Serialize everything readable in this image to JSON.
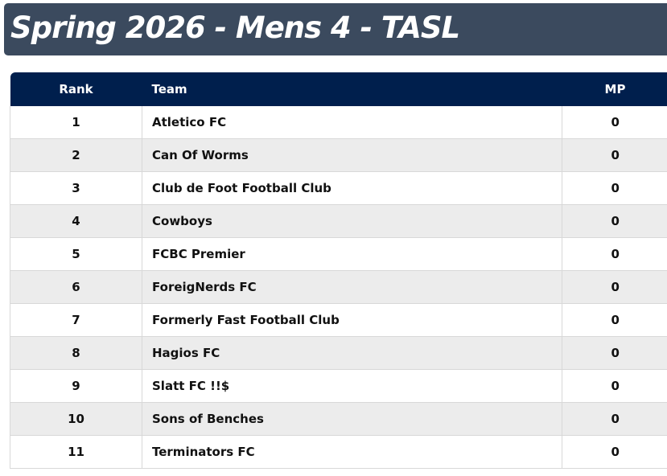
{
  "title": "Spring 2026 - Mens 4 - TASL",
  "colors": {
    "title_bar": "#3b4a5e",
    "title_corner": "#0e2a52",
    "table_header": "#001f4d",
    "row_alt": "#ececec"
  },
  "table": {
    "headers": {
      "rank": "Rank",
      "team": "Team",
      "mp": "MP"
    },
    "rows": [
      {
        "rank": "1",
        "team": "Atletico FC",
        "mp": "0"
      },
      {
        "rank": "2",
        "team": "Can Of Worms",
        "mp": "0"
      },
      {
        "rank": "3",
        "team": "Club de Foot Football Club",
        "mp": "0"
      },
      {
        "rank": "4",
        "team": "Cowboys",
        "mp": "0"
      },
      {
        "rank": "5",
        "team": "FCBC Premier",
        "mp": "0"
      },
      {
        "rank": "6",
        "team": "ForeigNerds FC",
        "mp": "0"
      },
      {
        "rank": "7",
        "team": "Formerly Fast Football Club",
        "mp": "0"
      },
      {
        "rank": "8",
        "team": "Hagios FC",
        "mp": "0"
      },
      {
        "rank": "9",
        "team": "Slatt FC !!$",
        "mp": "0"
      },
      {
        "rank": "10",
        "team": "Sons of Benches",
        "mp": "0"
      },
      {
        "rank": "11",
        "team": "Terminators FC",
        "mp": "0"
      }
    ]
  }
}
